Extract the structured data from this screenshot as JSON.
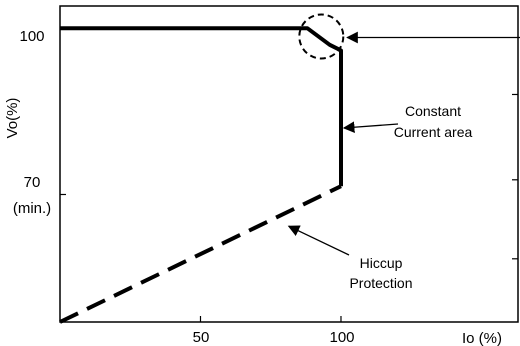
{
  "chart_data": {
    "type": "line",
    "title": "",
    "xlabel": "Io (%)",
    "ylabel": "Vo(%)",
    "xlim": [
      0,
      163
    ],
    "ylim": [
      47,
      104
    ],
    "grid": false,
    "x_ticks": [
      {
        "value": 50,
        "label": "50"
      },
      {
        "value": 100,
        "label": "100"
      }
    ],
    "y_ticks": [
      {
        "value": 100,
        "label": "100"
      },
      {
        "value": 70,
        "label": "70"
      }
    ],
    "y_tick_sublabel": "(min.)",
    "series": [
      {
        "style": "solid",
        "points": [
          [
            0,
            100
          ],
          [
            88,
            100
          ],
          [
            96,
            97
          ],
          [
            100,
            96
          ],
          [
            100,
            71.5
          ]
        ]
      },
      {
        "style": "dashed",
        "points": [
          [
            0,
            47
          ],
          [
            100,
            71.5
          ]
        ]
      }
    ],
    "annotations": [
      {
        "id": "constant-current",
        "lines": [
          "Constant",
          "Current area"
        ],
        "arrow_target": [
          100,
          82
        ]
      },
      {
        "id": "hiccup",
        "lines": [
          "Hiccup",
          "Protection"
        ],
        "arrow_target": [
          80,
          65
        ]
      },
      {
        "id": "knee",
        "shape": "dashed-circle",
        "at": [
          93,
          98.5
        ],
        "arrow_from_right": true
      }
    ]
  }
}
